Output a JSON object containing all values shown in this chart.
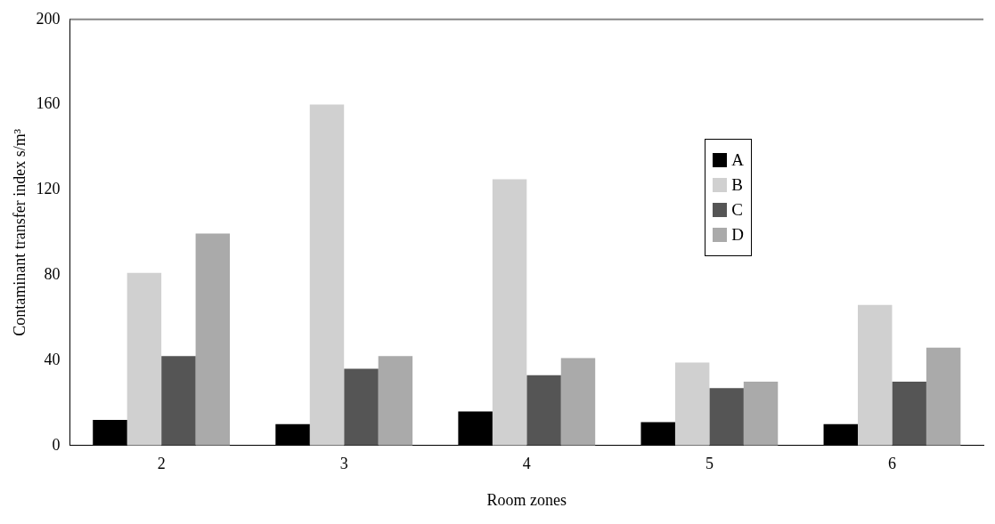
{
  "chart_data": {
    "type": "bar",
    "xlabel": "Room zones",
    "ylabel": "Contaminant transfer index s/m³",
    "categories": [
      "2",
      "3",
      "4",
      "5",
      "6"
    ],
    "series": [
      {
        "name": "A",
        "color": "#000000",
        "values": [
          12,
          10,
          16,
          11,
          10
        ]
      },
      {
        "name": "B",
        "color": "#d0d0d0",
        "values": [
          81,
          160,
          125,
          39,
          66
        ]
      },
      {
        "name": "C",
        "color": "#555555",
        "values": [
          42,
          36,
          33,
          27,
          30
        ]
      },
      {
        "name": "D",
        "color": "#aaaaaa",
        "values": [
          99.5,
          42,
          41,
          30,
          46
        ]
      }
    ],
    "ylim": [
      0,
      200
    ],
    "yticks": [
      0,
      40,
      80,
      120,
      160,
      200
    ],
    "grid": false,
    "legend": "right"
  }
}
